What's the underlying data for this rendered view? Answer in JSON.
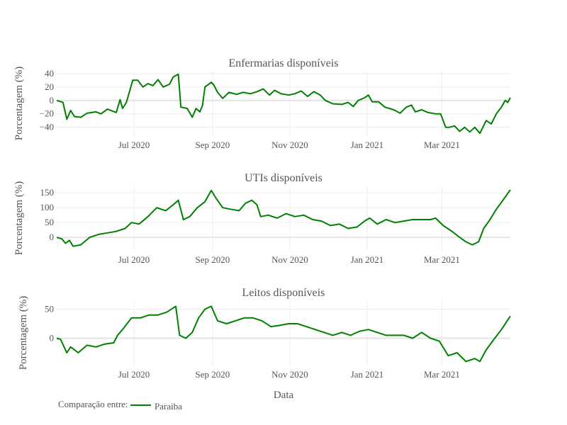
{
  "chart_data": [
    {
      "type": "line",
      "title": "Enfermarias disponíveis",
      "ylabel": "Porcentagem (%)",
      "xlabel": "",
      "x_range": [
        "2020-05-01",
        "2021-04-24"
      ],
      "ylim": [
        -53,
        43
      ],
      "y_ticks": [
        40,
        20,
        0,
        -20,
        -40
      ],
      "y_tick_labels": [
        "40",
        "20",
        "0",
        "−20",
        "−40"
      ],
      "x_ticks": [
        "2020-07-01",
        "2020-09-01",
        "2020-11-01",
        "2021-01-01",
        "2021-03-01"
      ],
      "x_tick_labels": [
        "Jul 2020",
        "Sep 2020",
        "Nov 2020",
        "Jan 2021",
        "Mar 2021"
      ],
      "grid": true,
      "series": [
        {
          "name": "Paraiba",
          "points": [
            [
              "2020-05-01",
              0
            ],
            [
              "2020-05-06",
              -3
            ],
            [
              "2020-05-09",
              -28
            ],
            [
              "2020-05-12",
              -15
            ],
            [
              "2020-05-15",
              -24
            ],
            [
              "2020-05-20",
              -25
            ],
            [
              "2020-05-25",
              -19
            ],
            [
              "2020-06-01",
              -17
            ],
            [
              "2020-06-05",
              -20
            ],
            [
              "2020-06-10",
              -13
            ],
            [
              "2020-06-17",
              -18
            ],
            [
              "2020-06-20",
              1
            ],
            [
              "2020-06-22",
              -12
            ],
            [
              "2020-06-25",
              -3
            ],
            [
              "2020-06-30",
              30
            ],
            [
              "2020-07-04",
              30
            ],
            [
              "2020-07-08",
              20
            ],
            [
              "2020-07-12",
              25
            ],
            [
              "2020-07-16",
              22
            ],
            [
              "2020-07-20",
              31
            ],
            [
              "2020-07-24",
              20
            ],
            [
              "2020-07-29",
              24
            ],
            [
              "2020-08-01",
              35
            ],
            [
              "2020-08-05",
              39
            ],
            [
              "2020-08-07",
              -10
            ],
            [
              "2020-08-12",
              -12
            ],
            [
              "2020-08-16",
              -25
            ],
            [
              "2020-08-19",
              -12
            ],
            [
              "2020-08-22",
              -17
            ],
            [
              "2020-08-24",
              -8
            ],
            [
              "2020-08-26",
              20
            ],
            [
              "2020-08-31",
              27
            ],
            [
              "2020-09-02",
              23
            ],
            [
              "2020-09-05",
              12
            ],
            [
              "2020-09-09",
              3
            ],
            [
              "2020-09-14",
              12
            ],
            [
              "2020-09-20",
              9
            ],
            [
              "2020-09-25",
              12
            ],
            [
              "2020-10-01",
              10
            ],
            [
              "2020-10-06",
              13
            ],
            [
              "2020-10-11",
              17
            ],
            [
              "2020-10-16",
              8
            ],
            [
              "2020-10-20",
              15
            ],
            [
              "2020-10-25",
              10
            ],
            [
              "2020-10-31",
              8
            ],
            [
              "2020-11-05",
              10
            ],
            [
              "2020-11-10",
              14
            ],
            [
              "2020-11-15",
              6
            ],
            [
              "2020-11-20",
              13
            ],
            [
              "2020-11-25",
              8
            ],
            [
              "2020-11-29",
              0
            ],
            [
              "2020-12-05",
              -5
            ],
            [
              "2020-12-12",
              -6
            ],
            [
              "2020-12-17",
              -3
            ],
            [
              "2020-12-21",
              -9
            ],
            [
              "2020-12-25",
              0
            ],
            [
              "2020-12-30",
              4
            ],
            [
              "2021-01-02",
              8
            ],
            [
              "2021-01-05",
              -2
            ],
            [
              "2021-01-10",
              -2
            ],
            [
              "2021-01-15",
              -10
            ],
            [
              "2021-01-22",
              -14
            ],
            [
              "2021-01-27",
              -19
            ],
            [
              "2021-02-01",
              -10
            ],
            [
              "2021-02-05",
              -7
            ],
            [
              "2021-02-08",
              -17
            ],
            [
              "2021-02-13",
              -14
            ],
            [
              "2021-02-18",
              -18
            ],
            [
              "2021-02-24",
              -20
            ],
            [
              "2021-02-28",
              -20
            ],
            [
              "2021-03-04",
              -40
            ],
            [
              "2021-03-07",
              -40
            ],
            [
              "2021-03-11",
              -38
            ],
            [
              "2021-03-15",
              -46
            ],
            [
              "2021-03-19",
              -40
            ],
            [
              "2021-03-23",
              -47
            ],
            [
              "2021-03-27",
              -40
            ],
            [
              "2021-03-31",
              -49
            ],
            [
              "2021-04-05",
              -30
            ],
            [
              "2021-04-09",
              -35
            ],
            [
              "2021-04-13",
              -20
            ],
            [
              "2021-04-17",
              -10
            ],
            [
              "2021-04-20",
              0
            ],
            [
              "2021-04-22",
              -3
            ],
            [
              "2021-04-24",
              4
            ]
          ]
        }
      ]
    },
    {
      "type": "line",
      "title": "UTIs disponíveis",
      "ylabel": "Porcentagem (%)",
      "xlabel": "",
      "x_range": [
        "2020-05-01",
        "2021-04-24"
      ],
      "ylim": [
        -45,
        172
      ],
      "y_ticks": [
        150,
        100,
        50,
        0
      ],
      "y_tick_labels": [
        "150",
        "100",
        "50",
        "0"
      ],
      "x_ticks": [
        "2020-07-01",
        "2020-09-01",
        "2020-11-01",
        "2021-01-01",
        "2021-03-01"
      ],
      "x_tick_labels": [
        "Jul 2020",
        "Sep 2020",
        "Nov 2020",
        "Jan 2021",
        "Mar 2021"
      ],
      "grid": true,
      "series": [
        {
          "name": "Paraiba",
          "points": [
            [
              "2020-05-01",
              0
            ],
            [
              "2020-05-05",
              -5
            ],
            [
              "2020-05-08",
              -20
            ],
            [
              "2020-05-11",
              -10
            ],
            [
              "2020-05-14",
              -30
            ],
            [
              "2020-05-20",
              -25
            ],
            [
              "2020-05-27",
              0
            ],
            [
              "2020-06-03",
              10
            ],
            [
              "2020-06-10",
              15
            ],
            [
              "2020-06-17",
              20
            ],
            [
              "2020-06-24",
              30
            ],
            [
              "2020-06-29",
              50
            ],
            [
              "2020-07-05",
              45
            ],
            [
              "2020-07-12",
              70
            ],
            [
              "2020-07-19",
              100
            ],
            [
              "2020-07-26",
              90
            ],
            [
              "2020-08-01",
              110
            ],
            [
              "2020-08-05",
              125
            ],
            [
              "2020-08-09",
              60
            ],
            [
              "2020-08-14",
              70
            ],
            [
              "2020-08-20",
              100
            ],
            [
              "2020-08-26",
              120
            ],
            [
              "2020-08-31",
              158
            ],
            [
              "2020-09-04",
              130
            ],
            [
              "2020-09-09",
              100
            ],
            [
              "2020-09-15",
              95
            ],
            [
              "2020-09-22",
              90
            ],
            [
              "2020-09-27",
              115
            ],
            [
              "2020-10-02",
              125
            ],
            [
              "2020-10-06",
              110
            ],
            [
              "2020-10-09",
              70
            ],
            [
              "2020-10-15",
              75
            ],
            [
              "2020-10-22",
              65
            ],
            [
              "2020-10-29",
              80
            ],
            [
              "2020-11-05",
              70
            ],
            [
              "2020-11-12",
              75
            ],
            [
              "2020-11-19",
              60
            ],
            [
              "2020-11-26",
              55
            ],
            [
              "2020-12-03",
              40
            ],
            [
              "2020-12-10",
              45
            ],
            [
              "2020-12-17",
              30
            ],
            [
              "2020-12-24",
              35
            ],
            [
              "2020-12-30",
              55
            ],
            [
              "2021-01-03",
              65
            ],
            [
              "2021-01-09",
              45
            ],
            [
              "2021-01-16",
              60
            ],
            [
              "2021-01-23",
              50
            ],
            [
              "2021-01-30",
              55
            ],
            [
              "2021-02-06",
              60
            ],
            [
              "2021-02-13",
              60
            ],
            [
              "2021-02-20",
              60
            ],
            [
              "2021-02-24",
              65
            ],
            [
              "2021-03-02",
              40
            ],
            [
              "2021-03-09",
              20
            ],
            [
              "2021-03-15",
              0
            ],
            [
              "2021-03-20",
              -15
            ],
            [
              "2021-03-25",
              -25
            ],
            [
              "2021-03-30",
              -15
            ],
            [
              "2021-04-03",
              30
            ],
            [
              "2021-04-08",
              60
            ],
            [
              "2021-04-13",
              95
            ],
            [
              "2021-04-19",
              130
            ],
            [
              "2021-04-24",
              160
            ]
          ]
        }
      ]
    },
    {
      "type": "line",
      "title": "Leitos disponíveis",
      "ylabel": "Porcentagem (%)",
      "xlabel": "Data",
      "x_range": [
        "2020-05-01",
        "2021-04-24"
      ],
      "ylim": [
        -47,
        64
      ],
      "y_ticks": [
        50,
        0
      ],
      "y_tick_labels": [
        "50",
        "0"
      ],
      "x_ticks": [
        "2020-07-01",
        "2020-09-01",
        "2020-11-01",
        "2021-01-01",
        "2021-03-01"
      ],
      "x_tick_labels": [
        "Jul 2020",
        "Sep 2020",
        "Nov 2020",
        "Jan 2021",
        "Mar 2021"
      ],
      "grid": true,
      "series": [
        {
          "name": "Paraiba",
          "points": [
            [
              "2020-05-01",
              0
            ],
            [
              "2020-05-04",
              -2
            ],
            [
              "2020-05-09",
              -25
            ],
            [
              "2020-05-12",
              -15
            ],
            [
              "2020-05-18",
              -25
            ],
            [
              "2020-05-25",
              -12
            ],
            [
              "2020-06-01",
              -15
            ],
            [
              "2020-06-08",
              -10
            ],
            [
              "2020-06-15",
              -8
            ],
            [
              "2020-06-18",
              5
            ],
            [
              "2020-06-22",
              15
            ],
            [
              "2020-06-29",
              35
            ],
            [
              "2020-07-06",
              35
            ],
            [
              "2020-07-13",
              40
            ],
            [
              "2020-07-20",
              40
            ],
            [
              "2020-07-27",
              45
            ],
            [
              "2020-08-03",
              55
            ],
            [
              "2020-08-06",
              5
            ],
            [
              "2020-08-11",
              0
            ],
            [
              "2020-08-16",
              10
            ],
            [
              "2020-08-21",
              35
            ],
            [
              "2020-08-26",
              50
            ],
            [
              "2020-08-31",
              55
            ],
            [
              "2020-09-05",
              30
            ],
            [
              "2020-09-12",
              25
            ],
            [
              "2020-09-19",
              30
            ],
            [
              "2020-09-26",
              35
            ],
            [
              "2020-10-03",
              35
            ],
            [
              "2020-10-10",
              30
            ],
            [
              "2020-10-17",
              20
            ],
            [
              "2020-10-24",
              22
            ],
            [
              "2020-10-31",
              25
            ],
            [
              "2020-11-07",
              25
            ],
            [
              "2020-11-14",
              20
            ],
            [
              "2020-11-21",
              15
            ],
            [
              "2020-11-28",
              10
            ],
            [
              "2020-12-05",
              5
            ],
            [
              "2020-12-12",
              10
            ],
            [
              "2020-12-19",
              5
            ],
            [
              "2020-12-26",
              12
            ],
            [
              "2021-01-02",
              15
            ],
            [
              "2021-01-09",
              10
            ],
            [
              "2021-01-16",
              5
            ],
            [
              "2021-01-23",
              5
            ],
            [
              "2021-01-30",
              5
            ],
            [
              "2021-02-06",
              0
            ],
            [
              "2021-02-13",
              10
            ],
            [
              "2021-02-20",
              0
            ],
            [
              "2021-02-27",
              -5
            ],
            [
              "2021-03-06",
              -30
            ],
            [
              "2021-03-13",
              -25
            ],
            [
              "2021-03-20",
              -40
            ],
            [
              "2021-03-27",
              -35
            ],
            [
              "2021-03-31",
              -40
            ],
            [
              "2021-04-05",
              -20
            ],
            [
              "2021-04-10",
              -5
            ],
            [
              "2021-04-17",
              15
            ],
            [
              "2021-04-24",
              38
            ]
          ]
        }
      ]
    }
  ],
  "legend": {
    "title": "Comparação entre:",
    "items": [
      {
        "name": "Paraiba",
        "color": "#008000"
      }
    ]
  },
  "colors": {
    "series": "#008000",
    "text": "#555555",
    "grid": "#eeeeee"
  }
}
